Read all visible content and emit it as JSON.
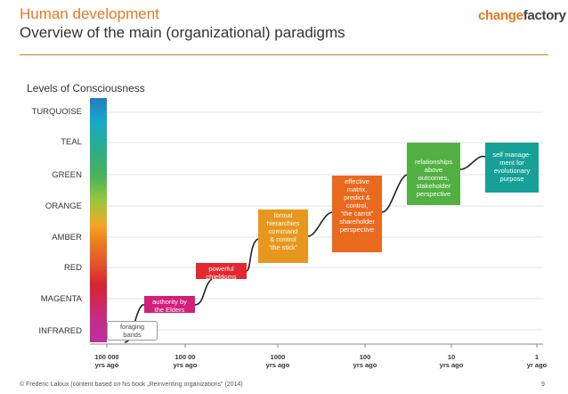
{
  "header": {
    "title": "Human development",
    "subtitle": "Overview of the main (organizational) paradigms",
    "logo_part1": "change",
    "logo_part2": "factory"
  },
  "diagram": {
    "axis_title": "Levels of Consciousness",
    "levels": [
      "TURQUOISE",
      "TEAL",
      "GREEN",
      "ORANGE",
      "AMBER",
      "RED",
      "MAGENTA",
      "INFRARED"
    ],
    "paradigms": [
      {
        "level": "INFRARED",
        "text": [
          "foraging",
          "bands"
        ]
      },
      {
        "level": "MAGENTA",
        "text": [
          "authority by",
          "the Elders"
        ]
      },
      {
        "level": "RED",
        "text": [
          "powerful",
          "chiefdoms"
        ]
      },
      {
        "level": "AMBER",
        "text": [
          "formal",
          "hierarchies",
          "command",
          "& control",
          "“the stick”"
        ]
      },
      {
        "level": "ORANGE",
        "text": [
          "effective",
          "matrix,",
          "predict &",
          "control,",
          "“the carrot”",
          "shareholder",
          "perspective"
        ]
      },
      {
        "level": "GREEN",
        "text": [
          "relationships",
          "above",
          "outcomes,",
          "stakeholder",
          "perspective"
        ]
      },
      {
        "level": "TEAL",
        "text": [
          "self manage-",
          "ment for",
          "evolutionary",
          "purpose"
        ]
      }
    ],
    "time_labels": [
      [
        "100 000",
        "yrs ago"
      ],
      [
        "100 00",
        "yrs ago"
      ],
      [
        "1000",
        "yrs ago"
      ],
      [
        "100",
        "yrs ago"
      ],
      [
        "10",
        "yrs ago"
      ],
      [
        "1",
        "yr ago"
      ]
    ],
    "colors": {
      "orange_accent": "#e8771e",
      "magenta": "#d4207c",
      "red": "#e32830",
      "amber": "#e8971e",
      "orange": "#e96a1f",
      "green": "#52b043",
      "teal": "#17a098"
    }
  },
  "footer": {
    "credit": "© Frederic Laloux (content based on his book „Reinventing organizations” (2014)",
    "page": "9"
  }
}
